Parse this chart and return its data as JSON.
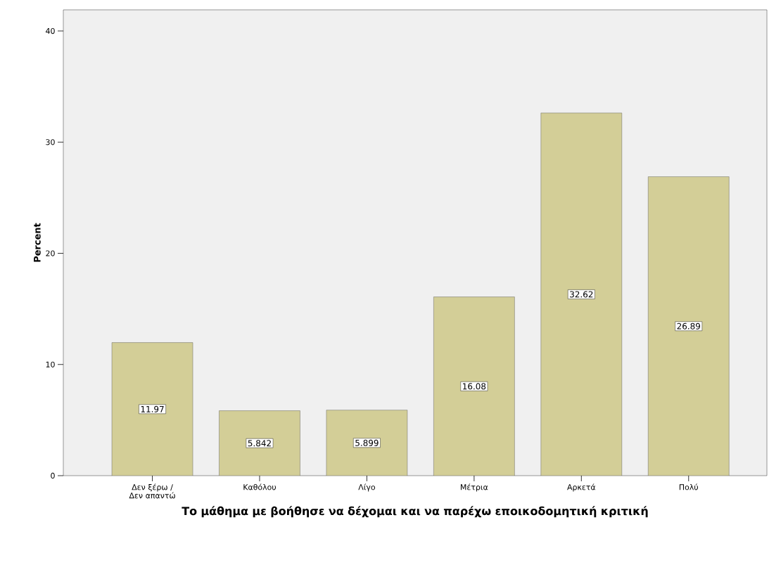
{
  "chart_data": {
    "type": "bar",
    "categories": [
      "Δεν ξέρω / Δεν απαντώ",
      "Καθόλου",
      "Λίγο",
      "Μέτρια",
      "Αρκετά",
      "Πολύ"
    ],
    "values": [
      11.97,
      5.842,
      5.899,
      16.08,
      32.62,
      26.89
    ],
    "color": "#d3ce97",
    "ylim": [
      0,
      41.9
    ],
    "yticks": [
      0,
      10,
      20,
      30,
      40
    ],
    "xlabel": "Το μάθημα με βοήθησε να δέχομαι και να παρέχω εποικοδομητική κριτική",
    "ylabel": "Percent",
    "data_labels": true
  }
}
